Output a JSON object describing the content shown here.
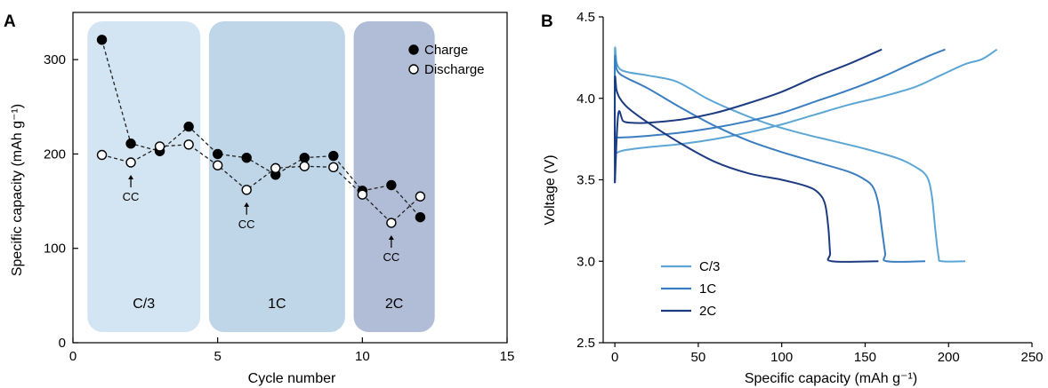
{
  "chart_data": [
    {
      "panel": "A",
      "type": "scatter",
      "xlabel": "Cycle number",
      "ylabel": "Specific capacity (mAh g⁻¹)",
      "xlim": [
        0,
        15
      ],
      "ylim": [
        0,
        350
      ],
      "xticks": [
        "0",
        "5",
        "10",
        "15"
      ],
      "yticks": [
        "0",
        "100",
        "200",
        "300"
      ],
      "grid": false,
      "legend_position": "top-right",
      "series": [
        {
          "name": "Charge",
          "marker": "filled-circle",
          "line": "dashed",
          "x": [
            1,
            2,
            3,
            4,
            5,
            6,
            7,
            8,
            9,
            10,
            11,
            12
          ],
          "y": [
            321,
            211,
            203,
            229,
            200,
            196,
            178,
            196,
            198,
            161,
            167,
            133
          ]
        },
        {
          "name": "Discharge",
          "marker": "open-circle",
          "line": "dashed",
          "x": [
            1,
            2,
            3,
            4,
            5,
            6,
            7,
            8,
            9,
            10,
            11,
            12
          ],
          "y": [
            199,
            191,
            208,
            210,
            188,
            162,
            185,
            187,
            186,
            157,
            127,
            155
          ]
        }
      ],
      "regions": [
        {
          "label": "C/3",
          "x_range": [
            0.5,
            4.4
          ],
          "color": "#d3e5f2"
        },
        {
          "label": "1C",
          "x_range": [
            4.7,
            9.4
          ],
          "color": "#bfd6e8"
        },
        {
          "label": "2C",
          "x_range": [
            9.7,
            12.5
          ],
          "color": "#b1bcd6"
        }
      ],
      "annotations": [
        {
          "text": "CC",
          "x": 2,
          "y": 191
        },
        {
          "text": "CC",
          "x": 6,
          "y": 162
        },
        {
          "text": "CC",
          "x": 11,
          "y": 127
        }
      ]
    },
    {
      "panel": "B",
      "type": "line",
      "xlabel": "Specific capacity (mAh g⁻¹)",
      "ylabel": "Voltage (V)",
      "xlim": [
        -7,
        250
      ],
      "ylim": [
        2.5,
        4.5
      ],
      "xticks": [
        "0",
        "50",
        "100",
        "150",
        "200",
        "250"
      ],
      "yticks": [
        "2.5",
        "3.0",
        "3.5",
        "4.0",
        "4.5"
      ],
      "grid": false,
      "legend_position": "bottom-left",
      "series": [
        {
          "name": "C/3",
          "color": "#5ba6d4",
          "charge": {
            "x": [
              0,
              5,
              20,
              40,
              60,
              80,
              100,
              120,
              140,
              160,
              180,
              195,
              210,
              220,
              229
            ],
            "y": [
              3.66,
              3.68,
              3.7,
              3.72,
              3.75,
              3.79,
              3.84,
              3.9,
              3.96,
              4.01,
              4.07,
              4.14,
              4.21,
              4.24,
              4.3
            ]
          },
          "discharge": {
            "x": [
              0,
              0,
              1,
              3,
              8,
              20,
              35,
              45,
              55,
              70,
              90,
              110,
              130,
              150,
              170,
              180,
              187,
              190,
              192,
              194,
              196,
              210
            ],
            "y": [
              3.66,
              4.28,
              4.22,
              4.18,
              4.16,
              4.14,
              4.11,
              4.06,
              4.0,
              3.93,
              3.85,
              3.79,
              3.74,
              3.69,
              3.63,
              3.58,
              3.52,
              3.4,
              3.2,
              3.03,
              3.0,
              3.0
            ]
          }
        },
        {
          "name": "1C",
          "color": "#3b7ebf",
          "charge": {
            "x": [
              0,
              5,
              20,
              40,
              60,
              80,
              100,
              120,
              140,
              160,
              175,
              188,
              198
            ],
            "y": [
              3.76,
              3.76,
              3.77,
              3.79,
              3.82,
              3.86,
              3.91,
              3.98,
              4.05,
              4.13,
              4.2,
              4.26,
              4.3
            ]
          },
          "discharge": {
            "x": [
              0,
              0,
              1,
              3,
              8,
              20,
              40,
              60,
              80,
              100,
              120,
              140,
              150,
              155,
              158,
              160,
              162,
              163,
              186
            ],
            "y": [
              3.76,
              4.24,
              4.18,
              4.15,
              4.12,
              4.06,
              3.94,
              3.83,
              3.74,
              3.67,
              3.61,
              3.55,
              3.5,
              3.45,
              3.35,
              3.2,
              3.05,
              3.0,
              3.0
            ]
          }
        },
        {
          "name": "2C",
          "color": "#1d3b80",
          "charge": {
            "x": [
              0,
              2,
              5,
              10,
              20,
              40,
              60,
              80,
              100,
              120,
              140,
              160
            ],
            "y": [
              3.48,
              3.9,
              3.86,
              3.85,
              3.85,
              3.87,
              3.91,
              3.97,
              4.04,
              4.13,
              4.21,
              4.3
            ]
          },
          "discharge": {
            "x": [
              0,
              0,
              1,
              3,
              8,
              20,
              40,
              60,
              80,
              100,
              115,
              122,
              126,
              128,
              129,
              130,
              158
            ],
            "y": [
              3.48,
              4.1,
              4.05,
              4.0,
              3.94,
              3.85,
              3.72,
              3.61,
              3.54,
              3.5,
              3.46,
              3.42,
              3.35,
              3.2,
              3.05,
              3.0,
              3.0
            ]
          }
        }
      ]
    }
  ]
}
